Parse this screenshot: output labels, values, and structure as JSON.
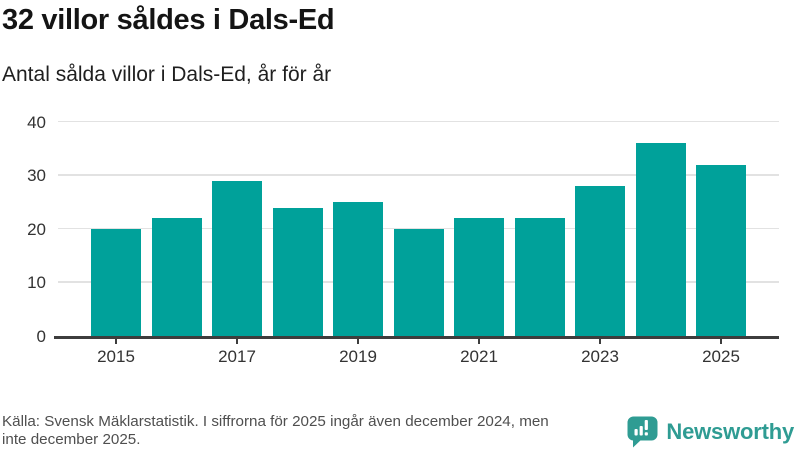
{
  "header": {
    "title": "32 villor såldes i Dals-Ed",
    "subtitle": "Antal sålda villor i Dals-Ed, år för år"
  },
  "chart_data": {
    "type": "bar",
    "categories": [
      "2015",
      "2016",
      "2017",
      "2018",
      "2019",
      "2020",
      "2021",
      "2022",
      "2023",
      "2024",
      "2025"
    ],
    "values": [
      20,
      22,
      29,
      24,
      25,
      20,
      22,
      22,
      28,
      36,
      32
    ],
    "title": "32 villor såldes i Dals-Ed",
    "subtitle": "Antal sålda villor i Dals-Ed, år för år",
    "xlabel": "",
    "ylabel": "",
    "ylim": [
      0,
      40
    ],
    "yticks": [
      0,
      10,
      20,
      30,
      40
    ],
    "xtick_labels": [
      "2015",
      "2017",
      "2019",
      "2021",
      "2023",
      "2025"
    ],
    "xtick_indices": [
      0,
      2,
      4,
      6,
      8,
      10
    ],
    "grid": true,
    "legend_position": "none",
    "bar_color": "#00a19a"
  },
  "footer": {
    "source_lines": [
      "Källa: Svensk Mäklarstatistik. I siffrorna för 2025 ingår även december 2024, men",
      "inte december 2025."
    ],
    "logo_text": "Newsworthy"
  },
  "colors": {
    "bar": "#00a19a",
    "grid": "#e2e2e2",
    "axis": "#3d3d3d",
    "title": "#141414",
    "tick_text": "#333333",
    "footer_text": "#4f4f4f",
    "logo": "#2f9c93",
    "background": "#ffffff"
  }
}
